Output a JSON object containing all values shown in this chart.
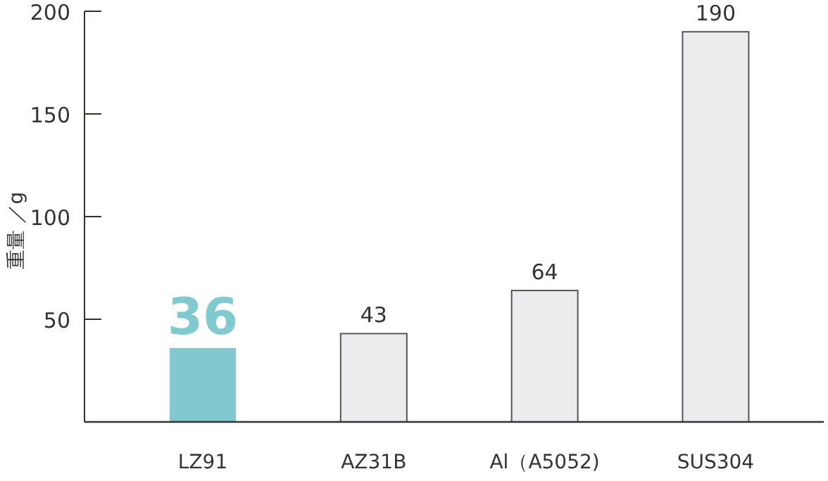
{
  "chart_data": {
    "type": "bar",
    "ylabel": "重量 ／g",
    "categories": [
      "LZ91",
      "AZ31B",
      "Al（A5052)",
      "SUS304"
    ],
    "values": [
      36,
      43,
      64,
      190
    ],
    "colors": [
      "#80c9cf",
      "#ececee",
      "#ececee",
      "#ececee"
    ],
    "ylim": [
      0,
      200
    ],
    "yticks": [
      50,
      100,
      150,
      200
    ],
    "grid": false,
    "data_labels": true
  }
}
